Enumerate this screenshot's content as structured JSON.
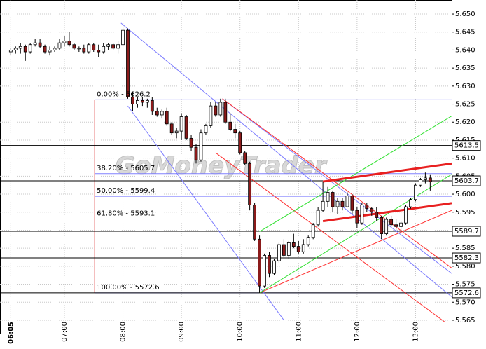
{
  "chart_data": {
    "type": "candlestick",
    "watermark": "GoMoneyTrader",
    "xlim": [
      354,
      817
    ],
    "ylim": [
      5.5611,
      5.6539
    ],
    "xticks": [
      {
        "value": 365,
        "label": "06:05"
      },
      {
        "value": 420,
        "label": "07:00"
      },
      {
        "value": 480,
        "label": "08:00"
      },
      {
        "value": 540,
        "label": "09:00"
      },
      {
        "value": 600,
        "label": "10:00"
      },
      {
        "value": 660,
        "label": "11:00"
      },
      {
        "value": 720,
        "label": "12:00"
      },
      {
        "value": 780,
        "label": "13:00"
      }
    ],
    "yticks": [
      {
        "value": 5.565,
        "label": "5.565"
      },
      {
        "value": 5.57,
        "label": "5.570"
      },
      {
        "value": 5.575,
        "label": "5.575"
      },
      {
        "value": 5.58,
        "label": "5.580"
      },
      {
        "value": 5.585,
        "label": "5.585"
      },
      {
        "value": 5.59,
        "label": "5.590"
      },
      {
        "value": 5.595,
        "label": "5.595"
      },
      {
        "value": 5.6,
        "label": "5.600"
      },
      {
        "value": 5.605,
        "label": "5.605"
      },
      {
        "value": 5.61,
        "label": "5.610"
      },
      {
        "value": 5.615,
        "label": "5.615"
      },
      {
        "value": 5.62,
        "label": "5.620"
      },
      {
        "value": 5.625,
        "label": "5.625"
      },
      {
        "value": 5.63,
        "label": "5.630"
      },
      {
        "value": 5.635,
        "label": "5.635"
      },
      {
        "value": 5.64,
        "label": "5.640"
      },
      {
        "value": 5.645,
        "label": "5.645"
      },
      {
        "value": 5.65,
        "label": "5.650"
      }
    ],
    "grid": true,
    "up_color": "#ffffff",
    "down_color": "#8b1a1a",
    "x": [
      365,
      370,
      375,
      380,
      385,
      390,
      395,
      400,
      405,
      410,
      415,
      420,
      425,
      430,
      435,
      440,
      445,
      450,
      455,
      460,
      465,
      470,
      475,
      480,
      485,
      490,
      495,
      500,
      505,
      510,
      515,
      520,
      525,
      530,
      535,
      540,
      545,
      550,
      555,
      560,
      565,
      570,
      575,
      580,
      585,
      590,
      595,
      600,
      605,
      610,
      615,
      620,
      625,
      630,
      635,
      640,
      645,
      650,
      655,
      660,
      665,
      670,
      675,
      680,
      685,
      690,
      695,
      700,
      705,
      710,
      715,
      720,
      725,
      730,
      735,
      740,
      745,
      750,
      755,
      760,
      765,
      770,
      775,
      780,
      785,
      790,
      795
    ],
    "open": [
      5.6395,
      5.64,
      5.6405,
      5.641,
      5.6395,
      5.6415,
      5.642,
      5.641,
      5.6395,
      5.64,
      5.6405,
      5.642,
      5.6425,
      5.6415,
      5.6405,
      5.6405,
      5.6395,
      5.6415,
      5.64,
      5.6395,
      5.641,
      5.6415,
      5.6405,
      5.6415,
      5.6455,
      5.627,
      5.625,
      5.626,
      5.6255,
      5.626,
      5.623,
      5.622,
      5.623,
      5.6195,
      5.617,
      5.6175,
      5.6215,
      5.6155,
      5.613,
      5.6095,
      5.617,
      5.619,
      5.6245,
      5.622,
      5.6255,
      5.62,
      5.618,
      5.617,
      5.6115,
      5.6085,
      5.597,
      5.5875,
      5.5745,
      5.583,
      5.578,
      5.5815,
      5.586,
      5.583,
      5.5865,
      5.5855,
      5.584,
      5.586,
      5.588,
      5.5915,
      5.5955,
      5.598,
      5.6005,
      5.5965,
      5.598,
      5.5965,
      5.5995,
      5.5955,
      5.592,
      5.597,
      5.596,
      5.595,
      5.5935,
      5.589,
      5.593,
      5.5915,
      5.591,
      5.592,
      5.5965,
      5.5985,
      5.6025,
      5.604,
      5.6045
    ],
    "high": [
      5.6405,
      5.641,
      5.642,
      5.6415,
      5.642,
      5.643,
      5.643,
      5.6415,
      5.641,
      5.641,
      5.643,
      5.644,
      5.645,
      5.642,
      5.641,
      5.6415,
      5.642,
      5.642,
      5.6415,
      5.642,
      5.642,
      5.642,
      5.6425,
      5.6475,
      5.646,
      5.6285,
      5.627,
      5.627,
      5.6265,
      5.627,
      5.624,
      5.6235,
      5.624,
      5.62,
      5.6185,
      5.6225,
      5.622,
      5.6165,
      5.614,
      5.618,
      5.6195,
      5.6255,
      5.6255,
      5.6265,
      5.6265,
      5.6225,
      5.6195,
      5.6175,
      5.612,
      5.609,
      5.5975,
      5.5885,
      5.5835,
      5.584,
      5.582,
      5.5865,
      5.5875,
      5.587,
      5.589,
      5.587,
      5.5875,
      5.5885,
      5.592,
      5.5965,
      5.6035,
      5.602,
      5.601,
      5.599,
      5.599,
      5.6005,
      5.6,
      5.5965,
      5.5975,
      5.5975,
      5.5965,
      5.5965,
      5.594,
      5.5935,
      5.594,
      5.593,
      5.5925,
      5.597,
      5.599,
      5.603,
      5.6045,
      5.606,
      5.6055
    ],
    "low": [
      5.6385,
      5.639,
      5.639,
      5.637,
      5.639,
      5.641,
      5.6405,
      5.639,
      5.6385,
      5.6395,
      5.64,
      5.641,
      5.641,
      5.64,
      5.6395,
      5.639,
      5.639,
      5.6395,
      5.638,
      5.639,
      5.64,
      5.64,
      5.639,
      5.641,
      5.6265,
      5.623,
      5.624,
      5.6245,
      5.624,
      5.622,
      5.6215,
      5.621,
      5.619,
      5.6165,
      5.6155,
      5.615,
      5.615,
      5.612,
      5.6085,
      5.609,
      5.6165,
      5.6185,
      5.6215,
      5.6215,
      5.6195,
      5.6175,
      5.6155,
      5.611,
      5.608,
      5.5955,
      5.587,
      5.5726,
      5.574,
      5.577,
      5.5775,
      5.581,
      5.5825,
      5.582,
      5.585,
      5.5835,
      5.5835,
      5.5855,
      5.5875,
      5.591,
      5.595,
      5.5965,
      5.595,
      5.5945,
      5.5955,
      5.5965,
      5.5945,
      5.5905,
      5.5915,
      5.595,
      5.594,
      5.5925,
      5.5875,
      5.5885,
      5.591,
      5.5895,
      5.5895,
      5.5915,
      5.596,
      5.598,
      5.602,
      5.603,
      5.601
    ],
    "close": [
      5.64,
      5.6405,
      5.641,
      5.6395,
      5.6415,
      5.642,
      5.641,
      5.6395,
      5.64,
      5.6405,
      5.642,
      5.6425,
      5.6415,
      5.6405,
      5.6405,
      5.6395,
      5.6415,
      5.64,
      5.6395,
      5.641,
      5.6415,
      5.6405,
      5.6415,
      5.6455,
      5.627,
      5.625,
      5.626,
      5.6255,
      5.626,
      5.623,
      5.622,
      5.623,
      5.6195,
      5.617,
      5.6175,
      5.6215,
      5.6155,
      5.613,
      5.6095,
      5.617,
      5.619,
      5.6245,
      5.622,
      5.6255,
      5.62,
      5.618,
      5.617,
      5.6115,
      5.6085,
      5.597,
      5.5875,
      5.5745,
      5.583,
      5.578,
      5.5815,
      5.586,
      5.583,
      5.5865,
      5.5855,
      5.584,
      5.586,
      5.588,
      5.5915,
      5.5955,
      5.598,
      5.6005,
      5.5965,
      5.598,
      5.5965,
      5.5995,
      5.5955,
      5.592,
      5.597,
      5.596,
      5.595,
      5.5935,
      5.589,
      5.593,
      5.5915,
      5.591,
      5.592,
      5.5965,
      5.5985,
      5.6025,
      5.604,
      5.6045,
      5.6035
    ],
    "fib_anchor_x": 451,
    "fib_levels": [
      {
        "value": 5.6262,
        "label": "0.00% - 5626.2"
      },
      {
        "value": 5.6057,
        "label": "38.20% - 5605.7"
      },
      {
        "value": 5.5994,
        "label": "50.00% - 5599.4"
      },
      {
        "value": 5.5931,
        "label": "61.80% - 5593.1"
      },
      {
        "value": 5.5726,
        "label": "100.00% - 5572.6"
      }
    ],
    "levels": [
      {
        "value": 5.6135,
        "label": "5613.5"
      },
      {
        "value": 5.6037,
        "label": "5603.7"
      },
      {
        "value": 5.5897,
        "label": "5589.7"
      },
      {
        "value": 5.5823,
        "label": "5582.3"
      },
      {
        "value": 5.5726,
        "label": "5572.6"
      }
    ],
    "lines": [
      {
        "color": "#7b7bff",
        "width": 1,
        "x": [
          478,
          817
        ],
        "y": [
          5.6475,
          5.5715
        ]
      },
      {
        "color": "#7b7bff",
        "width": 1,
        "x": [
          485,
          645
        ],
        "y": [
          5.6245,
          5.565
        ]
      },
      {
        "color": "#7b7bff",
        "width": 1,
        "x": [
          582,
          817
        ],
        "y": [
          5.6265,
          5.578
        ]
      },
      {
        "color": "#ff3030",
        "width": 1,
        "x": [
          582,
          817
        ],
        "y": [
          5.6265,
          5.5795
        ]
      },
      {
        "color": "#ff3030",
        "width": 1,
        "x": [
          575,
          810
        ],
        "y": [
          5.6115,
          5.5645
        ]
      },
      {
        "color": "#ff3030",
        "width": 1,
        "x": [
          620,
          817
        ],
        "y": [
          5.5726,
          5.5955
        ]
      },
      {
        "color": "#30e030",
        "width": 1,
        "x": [
          620,
          817
        ],
        "y": [
          5.5726,
          5.6055
        ]
      },
      {
        "color": "#30e030",
        "width": 1,
        "x": [
          620,
          817
        ],
        "y": [
          5.5896,
          5.6217
        ]
      },
      {
        "color": "#e82020",
        "width": 3,
        "x": [
          685,
          817
        ],
        "y": [
          5.6035,
          5.6085
        ]
      },
      {
        "color": "#e82020",
        "width": 3,
        "x": [
          685,
          817
        ],
        "y": [
          5.5925,
          5.5975
        ]
      }
    ]
  }
}
